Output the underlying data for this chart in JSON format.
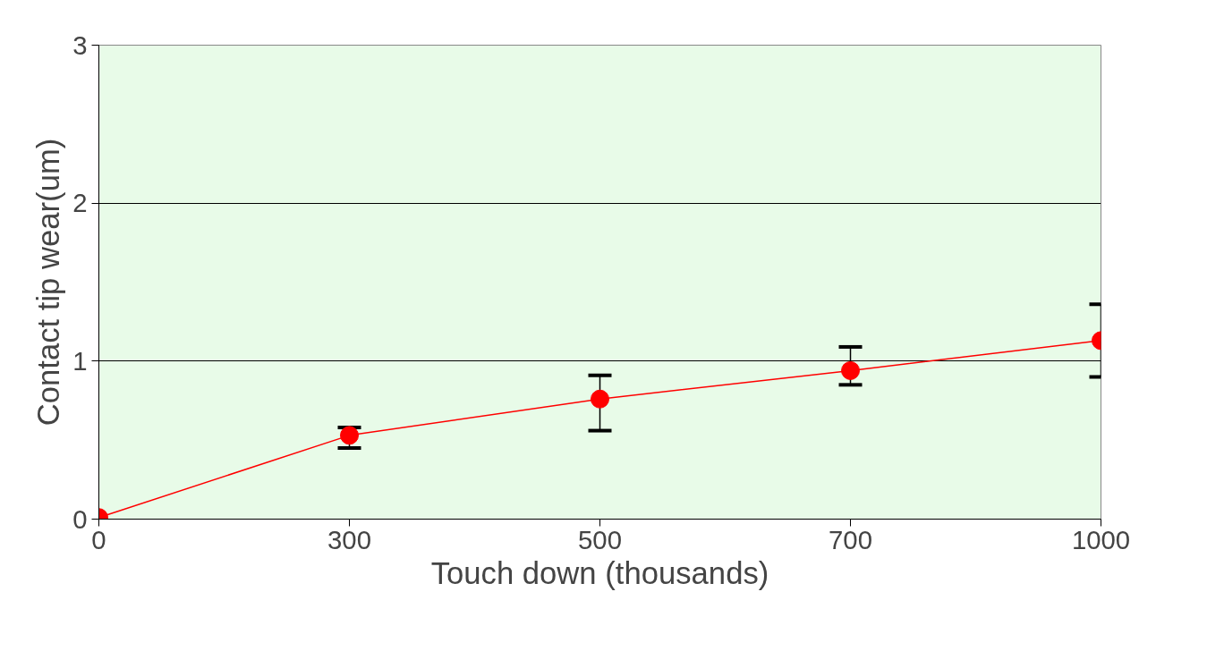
{
  "chart_data": {
    "type": "line",
    "xlabel": "Touch down (thousands)",
    "ylabel": "Contact tip wear(um)",
    "categories": [
      "0",
      "300",
      "500",
      "700",
      "1000"
    ],
    "series": [
      {
        "color": "#ff0000",
        "values": [
          0.01,
          0.53,
          0.76,
          0.94,
          1.13
        ],
        "errors": [
          null,
          [
            0.45,
            0.58
          ],
          [
            0.56,
            0.91
          ],
          [
            0.85,
            1.09
          ],
          [
            0.9,
            1.36
          ]
        ]
      }
    ],
    "ylim": [
      0,
      3
    ],
    "yticks": [
      0,
      1,
      2,
      3
    ],
    "grid": "y",
    "marker": "circle",
    "line_style": "solid"
  }
}
